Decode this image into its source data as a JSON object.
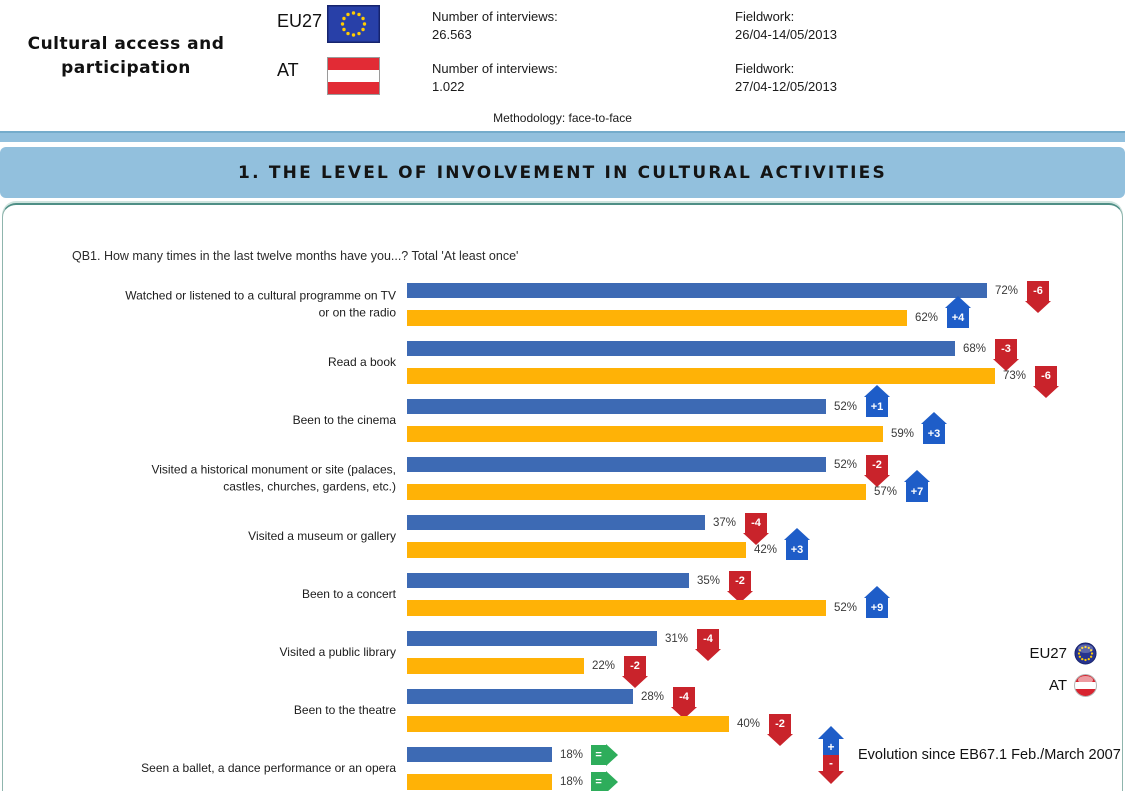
{
  "header": {
    "report_title": "Cultural access and\nparticipation",
    "entities": [
      {
        "code": "EU27",
        "flag": "eu-flag",
        "interviews_label": "Number of interviews:",
        "interviews_value": "26.563",
        "fieldwork_label": "Fieldwork:",
        "fieldwork_value": "26/04-14/05/2013"
      },
      {
        "code": "AT",
        "flag": "austria-flag",
        "interviews_label": "Number of interviews:",
        "interviews_value": "1.022",
        "fieldwork_label": "Fieldwork:",
        "fieldwork_value": "27/04-12/05/2013"
      }
    ],
    "methodology": "Methodology: face-to-face"
  },
  "section_banner": "1. THE LEVEL OF INVOLVEMENT IN CULTURAL ACTIVITIES",
  "chart_data": {
    "type": "bar",
    "orientation": "horizontal",
    "title": "QB1. How many times in the last twelve months have you...? Total 'At least once'",
    "value_unit": "%",
    "xlim": [
      0,
      80
    ],
    "grid": false,
    "legend_position": "right",
    "categories": [
      "Watched or listened to a cultural programme on TV\nor on the radio",
      "Read a book",
      "Been to the cinema",
      "Visited a historical monument or site (palaces,\ncastles, churches, gardens, etc.)",
      "Visited a museum or gallery",
      "Been to a concert",
      "Visited a public library",
      "Been to the theatre",
      "Seen a ballet, a dance performance or an opera"
    ],
    "series": [
      {
        "name": "EU27",
        "color": "#3D6AB4",
        "values": [
          72,
          68,
          52,
          52,
          37,
          35,
          31,
          28,
          18
        ],
        "changes": [
          "-6",
          "-3",
          "+1",
          "-2",
          "-4",
          "-2",
          "-4",
          "-4",
          "="
        ]
      },
      {
        "name": "AT",
        "color": "#FFB206",
        "values": [
          62,
          73,
          59,
          57,
          42,
          52,
          22,
          40,
          18
        ],
        "changes": [
          "+4",
          "-6",
          "+3",
          "+7",
          "+3",
          "+9",
          "-2",
          "-2",
          "="
        ]
      }
    ],
    "change_colors": {
      "up": "#1E5DC8",
      "down": "#C9232B",
      "equal": "#2EAD5B"
    },
    "legend": {
      "series_labels": [
        "EU27",
        "AT"
      ],
      "evolution_note": "Evolution since EB67.1 Feb./March 2007",
      "up_symbol": "+",
      "down_symbol": "-"
    }
  }
}
